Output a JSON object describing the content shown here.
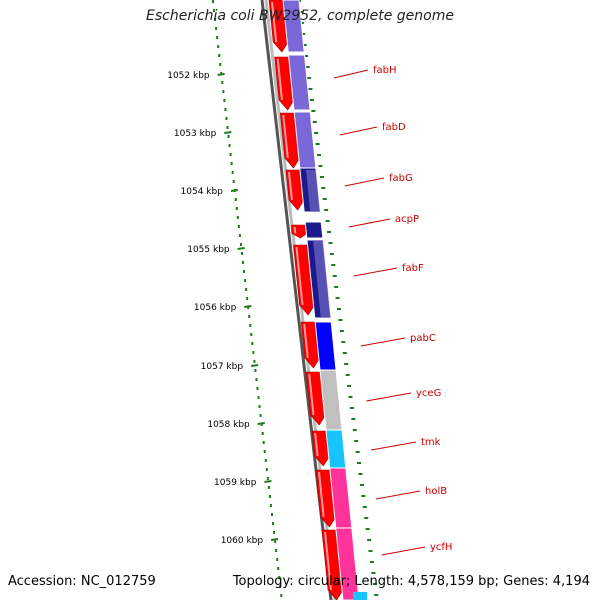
{
  "title": "Escherichia coli BW2952, complete genome",
  "footer": {
    "accession_label": "Accession:",
    "accession": "NC_012759",
    "topology_label": "Topology:",
    "topology": "circular",
    "length_label": "Length:",
    "length": "4,578,159 bp",
    "genes_label": "Genes:",
    "genes": "4,194"
  },
  "ticks": [
    {
      "label": "1052 kbp"
    },
    {
      "label": "1053 kbp"
    },
    {
      "label": "1054 kbp"
    },
    {
      "label": "1055 kbp"
    },
    {
      "label": "1056 kbp"
    },
    {
      "label": "1057 kbp"
    },
    {
      "label": "1058 kbp"
    },
    {
      "label": "1059 kbp"
    },
    {
      "label": "1060 kbp"
    }
  ],
  "genes": [
    {
      "name": "fabH"
    },
    {
      "name": "fabD"
    },
    {
      "name": "fabG"
    },
    {
      "name": "acpP"
    },
    {
      "name": "fabF"
    },
    {
      "name": "pabC"
    },
    {
      "name": "yceG"
    },
    {
      "name": "tmk"
    },
    {
      "name": "holB"
    },
    {
      "name": "ycfH"
    }
  ],
  "colors": {
    "cds": "#ff0000",
    "backbone": "#888888",
    "ticks": "#1f7a1f",
    "label": "#cc0000",
    "cog_lipid": "#7b68d8",
    "cog_navy": "#1a1a8c",
    "cog_blue": "#0000ff",
    "cog_gray": "#c0c0c0",
    "cog_cyan": "#19c3ff",
    "cog_pink": "#ff3399"
  }
}
